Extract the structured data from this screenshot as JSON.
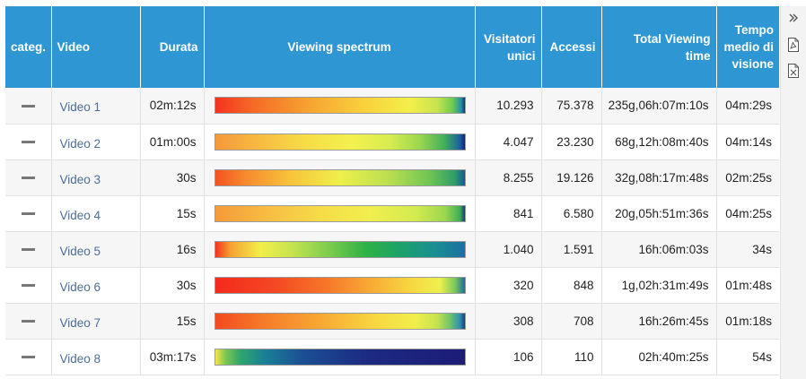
{
  "table": {
    "columns": {
      "category": "categ.",
      "video": "Video",
      "duration": "Durata",
      "spectrum": "Viewing spectrum",
      "unique_visitors": "Visitatori unici",
      "accesses": "Accessi",
      "total_viewing_time": "Total Viewing time",
      "avg_viewing_time": "Tempo medio di visione"
    },
    "rows": [
      {
        "category": "--",
        "video": "Video 1",
        "duration": "02m:12s",
        "unique_visitors": "10.293",
        "accesses": "75.378",
        "total_viewing_time": "235g,06h:07m:10s",
        "avg_viewing_time": "04m:29s",
        "spectrum_colors": [
          "#f4321e",
          "#f56a26",
          "#f7a431",
          "#f9d23c",
          "#f3ef49",
          "#c7e350",
          "#6fcb4f",
          "#1f8fa6",
          "#1a2d7a"
        ],
        "spectrum_stops": [
          0,
          0.15,
          0.38,
          0.6,
          0.78,
          0.89,
          0.95,
          0.985,
          1
        ]
      },
      {
        "category": "--",
        "video": "Video 2",
        "duration": "01m:00s",
        "unique_visitors": "4.047",
        "accesses": "23.230",
        "total_viewing_time": "68g,12h:08m:40s",
        "avg_viewing_time": "04m:14s",
        "spectrum_colors": [
          "#f6983a",
          "#f7b640",
          "#f7db47",
          "#f2f14e",
          "#d6ec50",
          "#9ad74f",
          "#3fae5a",
          "#1a5fa0",
          "#1a1e74"
        ],
        "spectrum_stops": [
          0,
          0.15,
          0.35,
          0.55,
          0.7,
          0.82,
          0.92,
          0.98,
          1
        ]
      },
      {
        "category": "--",
        "video": "Video 3",
        "duration": "30s",
        "unique_visitors": "8.255",
        "accesses": "19.126",
        "total_viewing_time": "32g,08h:17m:48s",
        "avg_viewing_time": "02m:25s",
        "spectrum_colors": [
          "#f4521f",
          "#f68a2d",
          "#f8c33b",
          "#eef04b",
          "#b8de50",
          "#6fc552",
          "#2d9d6a",
          "#1b5494"
        ],
        "spectrum_stops": [
          0,
          0.12,
          0.3,
          0.5,
          0.7,
          0.86,
          0.96,
          1
        ]
      },
      {
        "category": "--",
        "video": "Video 4",
        "duration": "15s",
        "unique_visitors": "841",
        "accesses": "6.580",
        "total_viewing_time": "20g,05h:51m:36s",
        "avg_viewing_time": "04m:25s",
        "spectrum_colors": [
          "#f69a39",
          "#f7bb42",
          "#f6dc48",
          "#f1ee4f",
          "#d4eb50",
          "#9cd74f",
          "#3eae55",
          "#1a3582"
        ],
        "spectrum_stops": [
          0,
          0.2,
          0.42,
          0.62,
          0.8,
          0.92,
          0.98,
          1
        ]
      },
      {
        "category": "--",
        "video": "Video 5",
        "duration": "16s",
        "unique_visitors": "1.040",
        "accesses": "1.591",
        "total_viewing_time": "16h:06m:03s",
        "avg_viewing_time": "34s",
        "spectrum_colors": [
          "#f4321e",
          "#f6a132",
          "#f3ee4a",
          "#c8e44f",
          "#7fcd4f",
          "#2fb245",
          "#1ba16b",
          "#1a8f92",
          "#1b6fa0"
        ],
        "spectrum_stops": [
          0,
          0.06,
          0.18,
          0.3,
          0.45,
          0.6,
          0.75,
          0.88,
          1
        ]
      },
      {
        "category": "--",
        "video": "Video 6",
        "duration": "30s",
        "unique_visitors": "320",
        "accesses": "848",
        "total_viewing_time": "1g,02h:31m:49s",
        "avg_viewing_time": "01m:48s",
        "spectrum_colors": [
          "#f42a1e",
          "#f44a22",
          "#f6782a",
          "#f8ad35",
          "#f7db44",
          "#edf04d",
          "#7bc95a",
          "#1b6c9a"
        ],
        "spectrum_stops": [
          0,
          0.25,
          0.45,
          0.63,
          0.8,
          0.9,
          0.96,
          1
        ]
      },
      {
        "category": "--",
        "video": "Video 7",
        "duration": "15s",
        "unique_visitors": "308",
        "accesses": "708",
        "total_viewing_time": "16h:26m:45s",
        "avg_viewing_time": "01m:18s",
        "spectrum_colors": [
          "#f4491f",
          "#f67c29",
          "#f8ae35",
          "#f8d942",
          "#f0ef4b",
          "#c6e24f",
          "#6fc46a",
          "#2e8fb0",
          "#1a3d84"
        ],
        "spectrum_stops": [
          0,
          0.2,
          0.45,
          0.65,
          0.8,
          0.89,
          0.94,
          0.98,
          1
        ]
      },
      {
        "category": "--",
        "video": "Video 8",
        "duration": "03m:17s",
        "unique_visitors": "106",
        "accesses": "110",
        "total_viewing_time": "02h:40m:25s",
        "avg_viewing_time": "54s",
        "spectrum_colors": [
          "#f6e64a",
          "#7ec750",
          "#2ea66d",
          "#1a7f97",
          "#1b4f93",
          "#1c2b84",
          "#1d1b78"
        ],
        "spectrum_stops": [
          0,
          0.04,
          0.1,
          0.2,
          0.35,
          0.6,
          1
        ]
      }
    ]
  },
  "toolbar": {
    "icons": [
      "double-chevron-right-icon",
      "pdf-file-icon",
      "excel-file-icon"
    ]
  }
}
